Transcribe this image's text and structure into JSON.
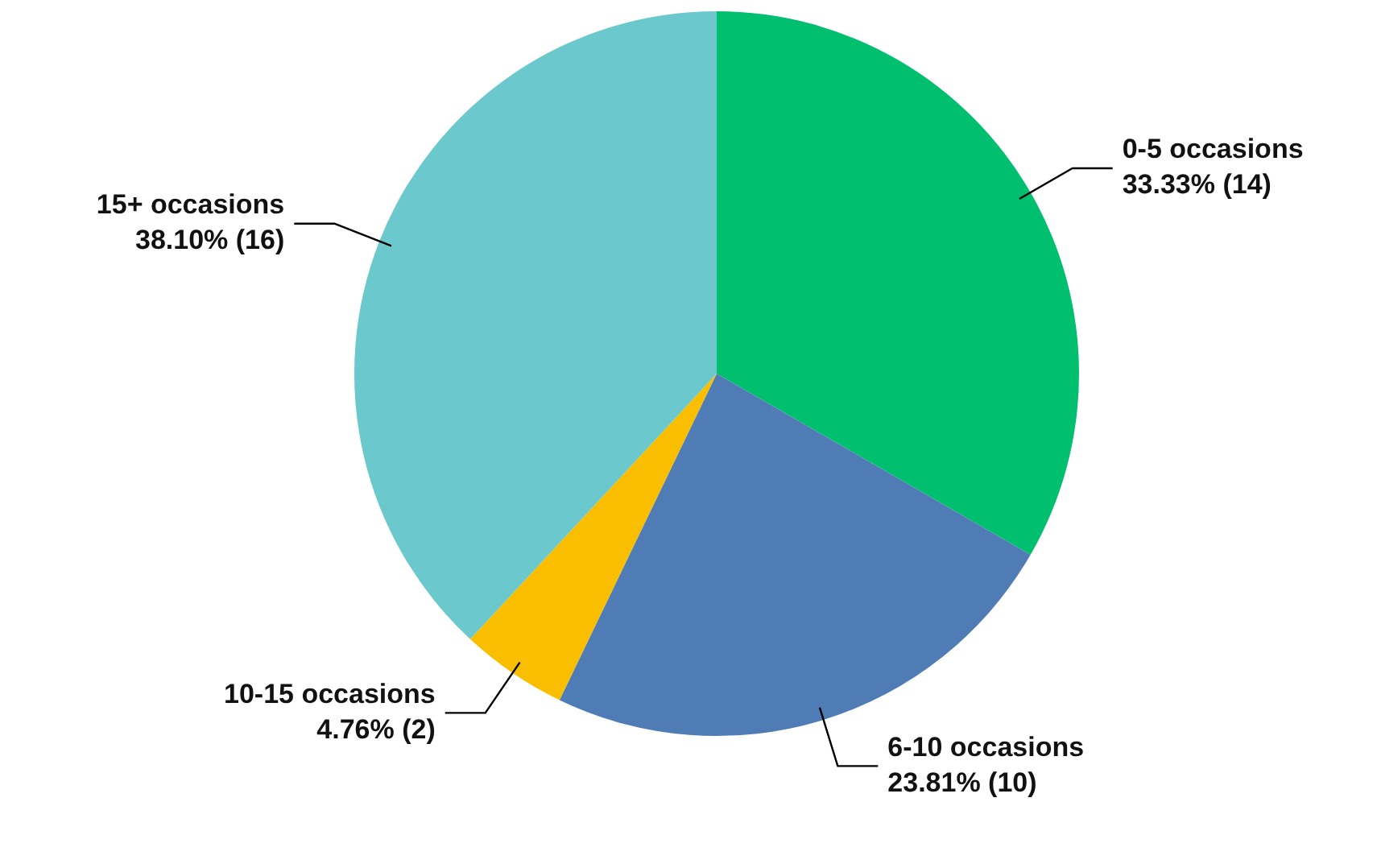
{
  "chart_data": {
    "type": "pie",
    "categories": [
      "0-5 occasions",
      "6-10 occasions",
      "10-15 occasions",
      "15+ occasions"
    ],
    "values": [
      14,
      10,
      2,
      16
    ],
    "colors": [
      "#00bf6f",
      "#507cb6",
      "#f9be00",
      "#6bc8cd"
    ],
    "value_labels": [
      "33.33% (14)",
      "23.81% (10)",
      "4.76% (2)",
      "38.10% (16)"
    ],
    "legend": false
  }
}
